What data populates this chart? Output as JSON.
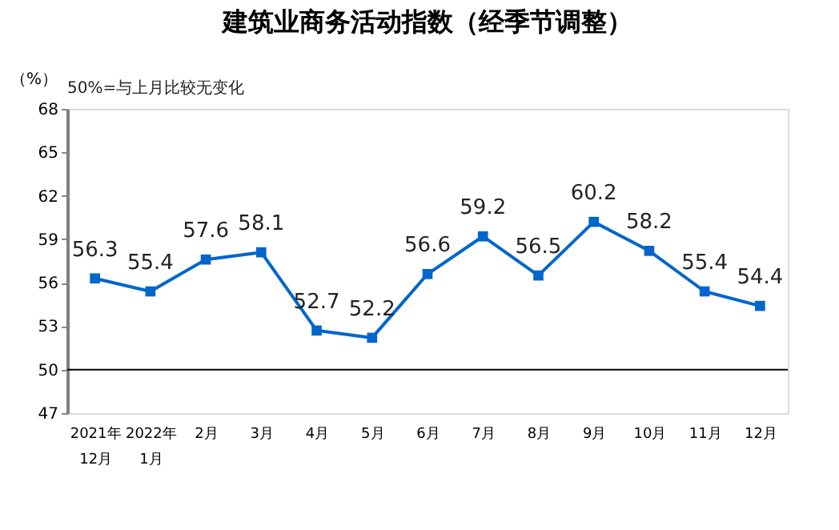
{
  "chart_data": {
    "type": "line",
    "title": "建筑业商务活动指数（经季节调整）",
    "ylabel": "（%）",
    "annotations": [
      "50%=与上月比较无变化"
    ],
    "categories": [
      "2021年\n12月",
      "2022年\n1月",
      "2月",
      "3月",
      "4月",
      "5月",
      "6月",
      "7月",
      "8月",
      "9月",
      "10月",
      "11月",
      "12月"
    ],
    "series": [
      {
        "color": "#0066cc",
        "values": [
          56.3,
          55.4,
          57.6,
          58.1,
          52.7,
          52.2,
          56.6,
          59.2,
          56.5,
          60.2,
          58.2,
          55.4,
          54.4
        ]
      }
    ],
    "ylim": [
      47,
      68
    ],
    "yticks": [
      47,
      50,
      53,
      56,
      59,
      62,
      65,
      68
    ],
    "ref_lines": [
      {
        "axis": "y",
        "value": 50,
        "color": "#000000"
      }
    ],
    "data_labels": true,
    "marker": "square",
    "line_style": "solid",
    "grid": false
  }
}
